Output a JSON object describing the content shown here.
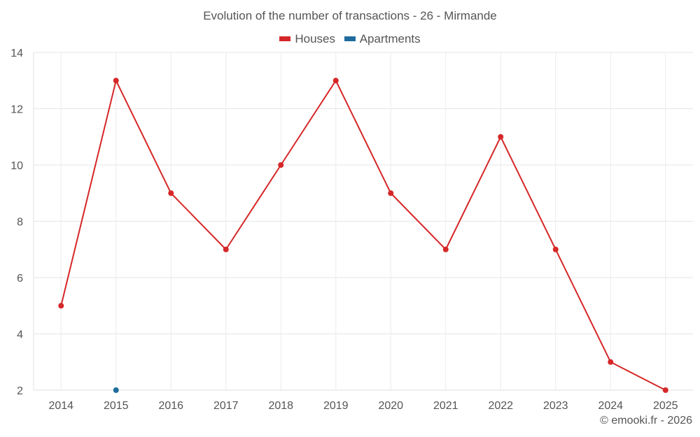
{
  "chart_data": {
    "type": "line",
    "title": "Evolution of the number of transactions - 26 - Mirmande",
    "xlabel": "",
    "ylabel": "",
    "categories": [
      "2014",
      "2015",
      "2016",
      "2017",
      "2018",
      "2019",
      "2020",
      "2021",
      "2022",
      "2023",
      "2024",
      "2025"
    ],
    "ylim": [
      2,
      14
    ],
    "yticks": [
      2,
      4,
      6,
      8,
      10,
      12,
      14
    ],
    "grid": true,
    "legend_position": "top-center",
    "series": [
      {
        "name": "Houses",
        "color": "#d62728",
        "values": [
          5,
          13,
          9,
          7,
          10,
          13,
          9,
          7,
          11,
          7,
          3,
          2
        ]
      },
      {
        "name": "Apartments",
        "color": "#1f6c9c",
        "values": [
          null,
          2,
          null,
          null,
          null,
          null,
          null,
          null,
          null,
          null,
          null,
          null
        ]
      }
    ]
  },
  "credit": "© emooki.fr - 2026"
}
